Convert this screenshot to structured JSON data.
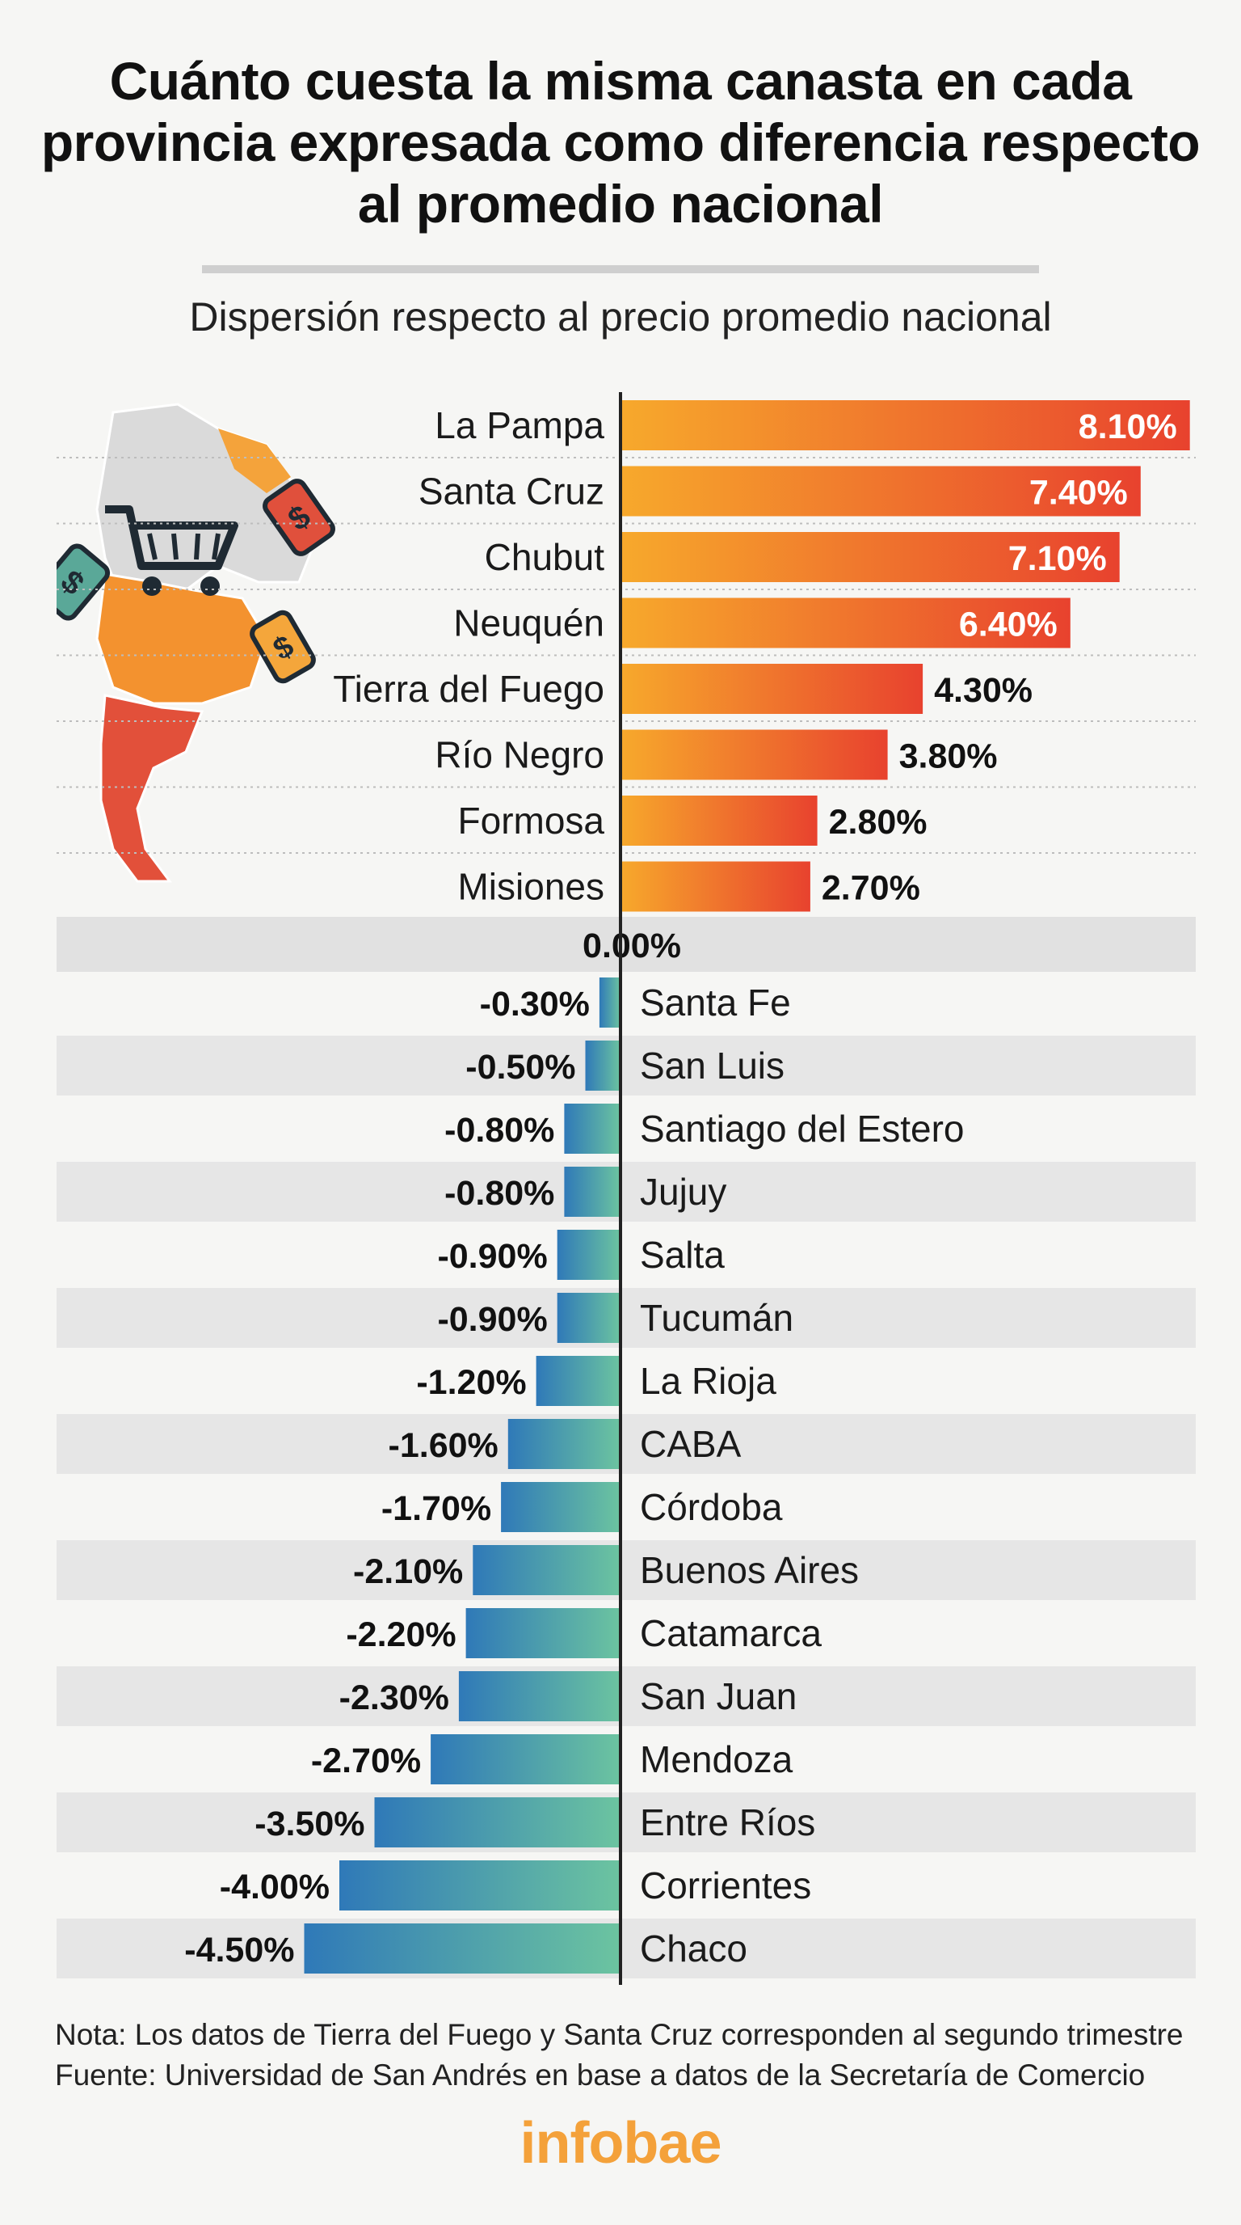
{
  "title": "Cuánto cuesta la misma canasta en cada provincia expresada como diferencia respecto al promedio nacional",
  "subtitle": "Dispersión respecto al precio promedio nacional",
  "note": "Nota: Los datos de Tierra del Fuego y Santa Cruz corresponden al segundo trimestre",
  "source": "Fuente: Universidad de San Andrés en base a datos de la Secretaría de Comercio",
  "logo": "infobae",
  "colors": {
    "positive_start": "#f7a92c",
    "positive_end": "#e8422e",
    "negative_start": "#2f79b8",
    "negative_end": "#6cc4a0",
    "zero_band": "#e1e1e1",
    "alt_row": "#e6e6e6"
  },
  "chart_data": {
    "type": "bar",
    "orientation": "horizontal",
    "categories": [
      "La Pampa",
      "Santa Cruz",
      "Chubut",
      "Neuquén",
      "Tierra del Fuego",
      "Río Negro",
      "Formosa",
      "Misiones",
      "Santa Fe",
      "San Luis",
      "Santiago del Estero",
      "Jujuy",
      "Salta",
      "Tucumán",
      "La Rioja",
      "CABA",
      "Córdoba",
      "Buenos Aires",
      "Catamarca",
      "San Juan",
      "Mendoza",
      "Entre Ríos",
      "Corrientes",
      "Chaco"
    ],
    "values": [
      8.1,
      7.4,
      7.1,
      6.4,
      4.3,
      3.8,
      2.8,
      2.7,
      -0.3,
      -0.5,
      -0.8,
      -0.8,
      -0.9,
      -0.9,
      -1.2,
      -1.6,
      -1.7,
      -2.1,
      -2.2,
      -2.3,
      -2.7,
      -3.5,
      -4.0,
      -4.5
    ],
    "value_labels": [
      "8.10%",
      "7.40%",
      "7.10%",
      "6.40%",
      "4.30%",
      "3.80%",
      "2.80%",
      "2.70%",
      "-0.30%",
      "-0.50%",
      "-0.80%",
      "-0.80%",
      "-0.90%",
      "-0.90%",
      "-1.20%",
      "-1.60%",
      "-1.70%",
      "-2.10%",
      "-2.20%",
      "-2.30%",
      "-2.70%",
      "-3.50%",
      "-4.00%",
      "-4.50%"
    ],
    "zero_label": "0.00%",
    "unit": "%"
  }
}
